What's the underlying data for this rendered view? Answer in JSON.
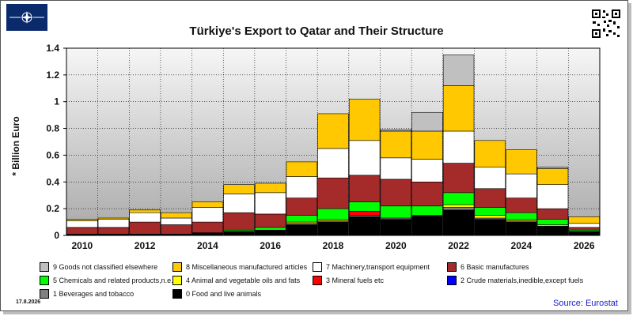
{
  "title": "Türkiye's Export to Qatar and Their Structure",
  "date_label": "17.8.2026",
  "source": "Source: Eurostat",
  "icons": {
    "logo": "emblem-logo",
    "qr": "qr-code-icon"
  },
  "chart_data": {
    "type": "bar",
    "stacked": true,
    "title": "Türkiye's Export to Qatar and Their Structure",
    "xlabel": "",
    "ylabel": "* Billion Euro",
    "ylim": [
      0,
      1.4
    ],
    "yticks": [
      "0",
      "0.2",
      "0.4",
      "0.6",
      "0.8",
      "1",
      "1.2",
      "1.4"
    ],
    "categories": [
      2010,
      2011,
      2012,
      2013,
      2014,
      2015,
      2016,
      2017,
      2018,
      2019,
      2020,
      2021,
      2022,
      2023,
      2024,
      2025,
      2026
    ],
    "xtick_labels": [
      "2010",
      "2012",
      "2014",
      "2016",
      "2018",
      "2020",
      "2022",
      "2024",
      "2026"
    ],
    "grid": true,
    "series": [
      {
        "name": "0 Food and live animals",
        "color": "#000000",
        "values": [
          0.01,
          0.01,
          0.01,
          0.01,
          0.02,
          0.03,
          0.04,
          0.08,
          0.1,
          0.14,
          0.12,
          0.15,
          0.19,
          0.12,
          0.1,
          0.07,
          0.03
        ]
      },
      {
        "name": "1 Beverages and tobacco",
        "color": "#808080",
        "values": [
          0,
          0,
          0,
          0,
          0,
          0,
          0,
          0.01,
          0.01,
          0.01,
          0.01,
          0,
          0.02,
          0.01,
          0.01,
          0,
          0
        ]
      },
      {
        "name": "2 Crude materials,inedible,except fuels",
        "color": "#0000ff",
        "values": [
          0,
          0,
          0,
          0,
          0,
          0,
          0,
          0,
          0,
          0,
          0,
          0,
          0,
          0,
          0,
          0,
          0
        ]
      },
      {
        "name": "3 Mineral fuels etc",
        "color": "#ff0000",
        "values": [
          0,
          0,
          0,
          0,
          0,
          0,
          0,
          0,
          0,
          0.03,
          0,
          0,
          0,
          0,
          0,
          0,
          0
        ]
      },
      {
        "name": "4 Animal and vegetable oils and fats",
        "color": "#ffff00",
        "values": [
          0,
          0,
          0,
          0,
          0,
          0,
          0,
          0.01,
          0.01,
          0,
          0,
          0,
          0.02,
          0.02,
          0.01,
          0.01,
          0
        ]
      },
      {
        "name": "5 Chemicals and related products,n.e.s.",
        "color": "#00ff00",
        "values": [
          0,
          0,
          0,
          0,
          0,
          0.01,
          0.02,
          0.05,
          0.08,
          0.07,
          0.09,
          0.07,
          0.09,
          0.06,
          0.05,
          0.04,
          0.01
        ]
      },
      {
        "name": "6 Basic manufactures",
        "color": "#a52a2a",
        "values": [
          0.05,
          0.05,
          0.09,
          0.07,
          0.08,
          0.13,
          0.1,
          0.13,
          0.23,
          0.2,
          0.2,
          0.18,
          0.22,
          0.14,
          0.11,
          0.08,
          0.02
        ]
      },
      {
        "name": "7 Machinery,transport equipment",
        "color": "#ffffff",
        "values": [
          0.05,
          0.06,
          0.07,
          0.05,
          0.11,
          0.14,
          0.16,
          0.16,
          0.22,
          0.26,
          0.16,
          0.17,
          0.24,
          0.16,
          0.18,
          0.18,
          0.03
        ]
      },
      {
        "name": "8 Miscellaneous manufactured articles",
        "color": "#ffc800",
        "values": [
          0.01,
          0.01,
          0.02,
          0.04,
          0.04,
          0.07,
          0.07,
          0.11,
          0.26,
          0.31,
          0.2,
          0.21,
          0.34,
          0.2,
          0.18,
          0.12,
          0.05
        ]
      },
      {
        "name": "9 Goods not classified elsewhere",
        "color": "#c0c0c0",
        "values": [
          0,
          0,
          0,
          0,
          0,
          0,
          0,
          0,
          0,
          0,
          0.01,
          0.14,
          0.23,
          0,
          0,
          0.01,
          0
        ]
      }
    ],
    "legend": {
      "placement": "bottom",
      "rows": [
        [
          "9 Goods not classified elsewhere",
          "8 Miscellaneous manufactured articles",
          "7 Machinery,transport equipment",
          "6 Basic manufactures"
        ],
        [
          "5 Chemicals and related products,n.e.s.",
          "4 Animal and vegetable oils and fats",
          "3 Mineral fuels etc",
          "2 Crude materials,inedible,except fuels"
        ],
        [
          "1 Beverages and tobacco",
          "0 Food and live animals"
        ]
      ]
    }
  }
}
